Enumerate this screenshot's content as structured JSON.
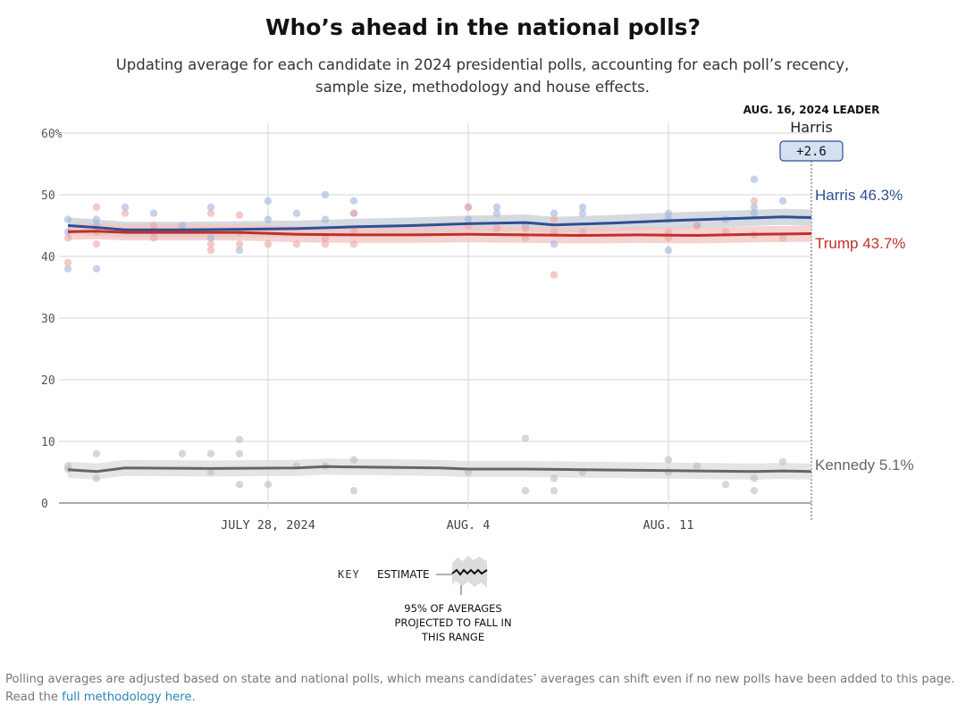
{
  "title": "Who’s ahead in the national polls?",
  "subtitle_line1": "Updating average for each candidate in 2024 presidential polls, accounting for each poll’s recency,",
  "subtitle_line2": "sample size, methodology and house effects.",
  "leader": {
    "date_label": "AUG. 16, 2024 LEADER",
    "name": "Harris",
    "margin": "+2.6"
  },
  "key": {
    "label": "KEY",
    "estimate": "ESTIMATE",
    "range_line1": "95% OF AVERAGES",
    "range_line2": "PROJECTED TO FALL IN",
    "range_line3": "THIS RANGE"
  },
  "footnote": {
    "text": "Polling averages are adjusted based on state and national polls, which means candidates’ averages can shift even if no new polls have been added to this page. Read the ",
    "link": "full methodology here",
    "end": "."
  },
  "colors": {
    "harris": "#2f4f94",
    "trump": "#c0302b",
    "kennedy": "#666666",
    "band": "#e2e2e2"
  },
  "chart_data": {
    "type": "line",
    "x_start": "2024-07-21",
    "x_end": "2024-08-16",
    "ylim": [
      0,
      60
    ],
    "yticks": [
      0,
      10,
      20,
      30,
      40,
      50,
      60
    ],
    "ytick_labels": [
      "0",
      "10",
      "20",
      "30",
      "40",
      "50",
      "60%"
    ],
    "xticks": [
      {
        "date": "2024-07-28",
        "label": "JULY 28, 2024"
      },
      {
        "date": "2024-08-04",
        "label": "AUG. 4"
      },
      {
        "date": "2024-08-11",
        "label": "AUG. 11"
      }
    ],
    "grid": true,
    "series": [
      {
        "name": "Harris",
        "end_label": "Harris 46.3%",
        "color": "#2f4f94",
        "values": [
          [
            "2024-07-21",
            45.0
          ],
          [
            "2024-07-22",
            44.7
          ],
          [
            "2024-07-23",
            44.3
          ],
          [
            "2024-07-25",
            44.3
          ],
          [
            "2024-07-27",
            44.4
          ],
          [
            "2024-07-29",
            44.5
          ],
          [
            "2024-07-31",
            44.8
          ],
          [
            "2024-08-02",
            45.0
          ],
          [
            "2024-08-04",
            45.3
          ],
          [
            "2024-08-06",
            45.5
          ],
          [
            "2024-08-07",
            45.1
          ],
          [
            "2024-08-09",
            45.4
          ],
          [
            "2024-08-11",
            45.8
          ],
          [
            "2024-08-13",
            46.1
          ],
          [
            "2024-08-15",
            46.4
          ],
          [
            "2024-08-16",
            46.3
          ]
        ],
        "polls": [
          [
            "2024-07-21",
            46
          ],
          [
            "2024-07-21",
            44
          ],
          [
            "2024-07-21",
            38
          ],
          [
            "2024-07-22",
            45
          ],
          [
            "2024-07-22",
            46
          ],
          [
            "2024-07-22",
            38
          ],
          [
            "2024-07-23",
            48
          ],
          [
            "2024-07-24",
            44
          ],
          [
            "2024-07-24",
            47
          ],
          [
            "2024-07-25",
            45
          ],
          [
            "2024-07-26",
            48
          ],
          [
            "2024-07-26",
            43
          ],
          [
            "2024-07-27",
            44
          ],
          [
            "2024-07-27",
            41
          ],
          [
            "2024-07-28",
            46
          ],
          [
            "2024-07-28",
            49
          ],
          [
            "2024-07-29",
            47
          ],
          [
            "2024-07-30",
            46
          ],
          [
            "2024-07-30",
            50
          ],
          [
            "2024-07-31",
            49
          ],
          [
            "2024-07-31",
            47
          ],
          [
            "2024-08-04",
            48
          ],
          [
            "2024-08-04",
            46
          ],
          [
            "2024-08-05",
            48
          ],
          [
            "2024-08-05",
            47
          ],
          [
            "2024-08-06",
            45
          ],
          [
            "2024-08-07",
            47
          ],
          [
            "2024-08-07",
            42
          ],
          [
            "2024-08-08",
            48
          ],
          [
            "2024-08-08",
            47
          ],
          [
            "2024-08-11",
            47
          ],
          [
            "2024-08-11",
            46
          ],
          [
            "2024-08-11",
            41
          ],
          [
            "2024-08-12",
            45
          ],
          [
            "2024-08-13",
            46
          ],
          [
            "2024-08-14",
            52.5
          ],
          [
            "2024-08-14",
            48
          ],
          [
            "2024-08-14",
            47
          ],
          [
            "2024-08-15",
            49
          ]
        ]
      },
      {
        "name": "Trump",
        "end_label": "Trump 43.7%",
        "color": "#c0302b",
        "values": [
          [
            "2024-07-21",
            44.0
          ],
          [
            "2024-07-22",
            44.1
          ],
          [
            "2024-07-23",
            43.9
          ],
          [
            "2024-07-25",
            43.9
          ],
          [
            "2024-07-27",
            43.9
          ],
          [
            "2024-07-29",
            43.6
          ],
          [
            "2024-07-31",
            43.5
          ],
          [
            "2024-08-02",
            43.5
          ],
          [
            "2024-08-04",
            43.6
          ],
          [
            "2024-08-06",
            43.5
          ],
          [
            "2024-08-08",
            43.4
          ],
          [
            "2024-08-10",
            43.5
          ],
          [
            "2024-08-12",
            43.4
          ],
          [
            "2024-08-14",
            43.6
          ],
          [
            "2024-08-16",
            43.7
          ]
        ],
        "polls": [
          [
            "2024-07-21",
            43
          ],
          [
            "2024-07-21",
            39
          ],
          [
            "2024-07-22",
            48
          ],
          [
            "2024-07-22",
            42
          ],
          [
            "2024-07-22",
            44
          ],
          [
            "2024-07-23",
            47
          ],
          [
            "2024-07-24",
            45
          ],
          [
            "2024-07-24",
            43
          ],
          [
            "2024-07-26",
            47
          ],
          [
            "2024-07-26",
            41
          ],
          [
            "2024-07-26",
            42
          ],
          [
            "2024-07-27",
            46.7
          ],
          [
            "2024-07-27",
            42
          ],
          [
            "2024-07-28",
            42
          ],
          [
            "2024-07-29",
            42
          ],
          [
            "2024-07-30",
            43
          ],
          [
            "2024-07-30",
            42
          ],
          [
            "2024-07-31",
            47
          ],
          [
            "2024-07-31",
            44
          ],
          [
            "2024-07-31",
            42
          ],
          [
            "2024-08-04",
            48
          ],
          [
            "2024-08-04",
            45
          ],
          [
            "2024-08-05",
            44.5
          ],
          [
            "2024-08-06",
            43
          ],
          [
            "2024-08-06",
            44.5
          ],
          [
            "2024-08-07",
            46
          ],
          [
            "2024-08-07",
            44
          ],
          [
            "2024-08-07",
            37
          ],
          [
            "2024-08-08",
            44
          ],
          [
            "2024-08-11",
            44
          ],
          [
            "2024-08-11",
            43
          ],
          [
            "2024-08-12",
            45
          ],
          [
            "2024-08-13",
            44
          ],
          [
            "2024-08-14",
            49
          ],
          [
            "2024-08-14",
            43.5
          ],
          [
            "2024-08-15",
            43
          ]
        ]
      },
      {
        "name": "Kennedy",
        "end_label": "Kennedy 5.1%",
        "color": "#666666",
        "values": [
          [
            "2024-07-21",
            5.4
          ],
          [
            "2024-07-22",
            5.1
          ],
          [
            "2024-07-23",
            5.7
          ],
          [
            "2024-07-26",
            5.6
          ],
          [
            "2024-07-29",
            5.7
          ],
          [
            "2024-07-30",
            5.9
          ],
          [
            "2024-08-01",
            5.8
          ],
          [
            "2024-08-03",
            5.7
          ],
          [
            "2024-08-04",
            5.5
          ],
          [
            "2024-08-06",
            5.5
          ],
          [
            "2024-08-08",
            5.4
          ],
          [
            "2024-08-10",
            5.3
          ],
          [
            "2024-08-12",
            5.2
          ],
          [
            "2024-08-14",
            5.1
          ],
          [
            "2024-08-15",
            5.2
          ],
          [
            "2024-08-16",
            5.1
          ]
        ],
        "polls": [
          [
            "2024-07-21",
            6
          ],
          [
            "2024-07-21",
            5.5
          ],
          [
            "2024-07-22",
            8
          ],
          [
            "2024-07-22",
            4
          ],
          [
            "2024-07-25",
            8
          ],
          [
            "2024-07-26",
            8
          ],
          [
            "2024-07-26",
            5
          ],
          [
            "2024-07-27",
            10.3
          ],
          [
            "2024-07-27",
            8
          ],
          [
            "2024-07-27",
            3
          ],
          [
            "2024-07-28",
            3
          ],
          [
            "2024-07-29",
            6
          ],
          [
            "2024-07-30",
            6
          ],
          [
            "2024-07-31",
            7
          ],
          [
            "2024-07-31",
            2
          ],
          [
            "2024-08-04",
            5
          ],
          [
            "2024-08-06",
            10.5
          ],
          [
            "2024-08-06",
            2
          ],
          [
            "2024-08-07",
            4
          ],
          [
            "2024-08-07",
            2
          ],
          [
            "2024-08-08",
            5
          ],
          [
            "2024-08-11",
            7
          ],
          [
            "2024-08-11",
            5
          ],
          [
            "2024-08-12",
            6
          ],
          [
            "2024-08-13",
            3
          ],
          [
            "2024-08-14",
            4
          ],
          [
            "2024-08-14",
            2
          ],
          [
            "2024-08-15",
            6.7
          ]
        ]
      }
    ]
  }
}
